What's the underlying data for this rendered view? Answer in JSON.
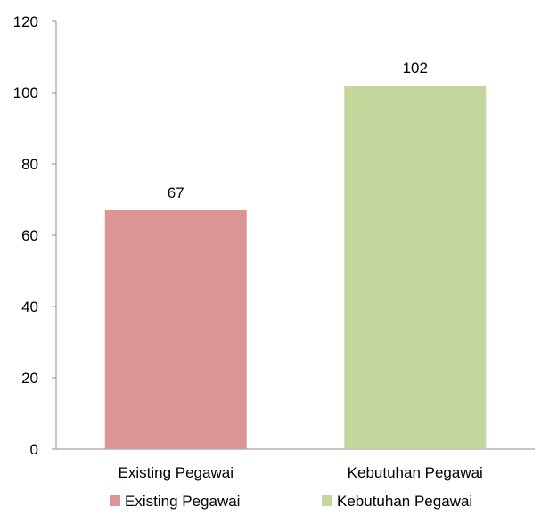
{
  "chart_data": {
    "type": "bar",
    "categories": [
      "Existing Pegawai",
      "Kebutuhan Pegawai"
    ],
    "values": [
      67,
      102
    ],
    "colors": [
      "#d99694",
      "#c3d69b"
    ],
    "ylim": [
      0,
      120
    ],
    "yticks": [
      0,
      20,
      40,
      60,
      80,
      100,
      120
    ],
    "ytick_labels": [
      "0",
      "20",
      "40",
      "60",
      "80",
      "100",
      "120"
    ],
    "data_labels": [
      "67",
      "102"
    ],
    "legend": {
      "placement": "bottom",
      "entries": [
        "Existing Pegawai",
        "Kebutuhan Pegawai"
      ]
    },
    "grid": false,
    "title": "",
    "xlabel": "",
    "ylabel": ""
  }
}
